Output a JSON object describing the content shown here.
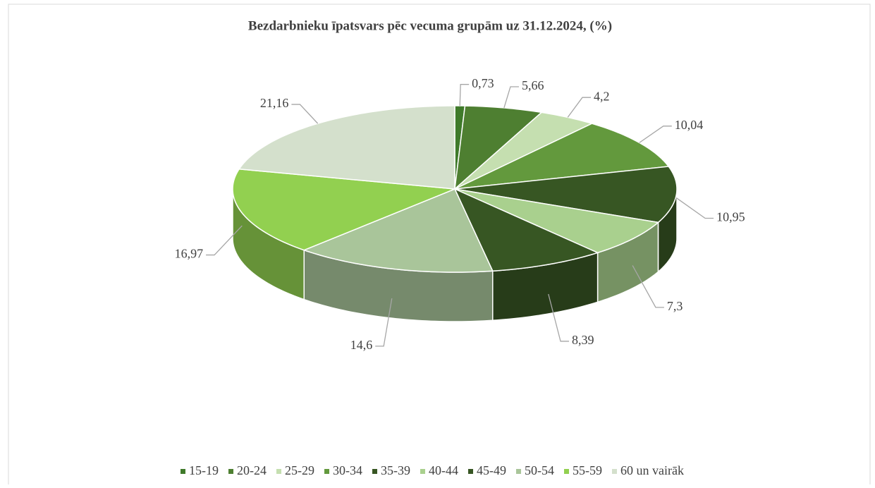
{
  "chart_data": {
    "type": "pie3d",
    "title": "Bezdarbnieku īpatsvars pēc vecuma grupām uz 31.12.2024, (%)",
    "categories": [
      "15-19",
      "20-24",
      "25-29",
      "30-34",
      "35-39",
      "40-44",
      "45-49",
      "50-54",
      "55-59",
      "60 un vairāk"
    ],
    "values": [
      0.73,
      5.66,
      4.2,
      10.04,
      10.95,
      7.3,
      8.39,
      14.6,
      16.97,
      21.16
    ],
    "value_labels": [
      "0,73",
      "5,66",
      "4,2",
      "10,04",
      "10,95",
      "7,3",
      "8,39",
      "14,6",
      "16,97",
      "21,16"
    ],
    "colors": [
      "#3f7a2a",
      "#4e7f31",
      "#c5dfb0",
      "#63993d",
      "#375623",
      "#a9d08e",
      "#375623",
      "#a9c59a",
      "#92d050",
      "#d4e0cc"
    ],
    "legend": "bottom"
  }
}
